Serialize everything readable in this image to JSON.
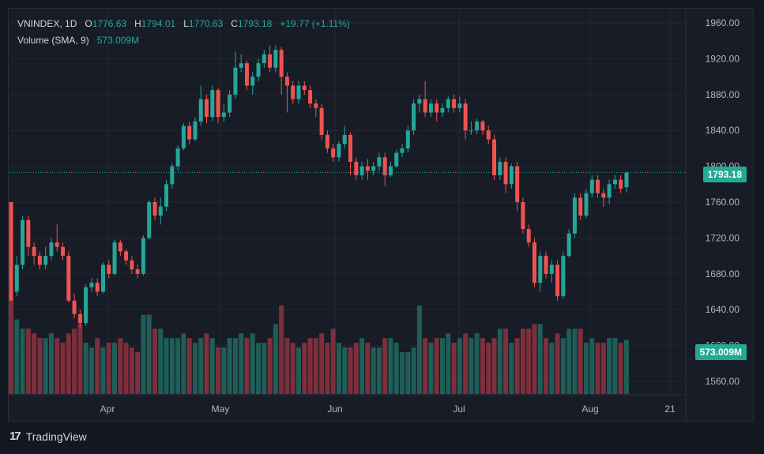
{
  "legend": {
    "symbol": "VNINDEX",
    "interval": "1D",
    "o_label": "O",
    "o_value": "1776.63",
    "h_label": "H",
    "h_value": "1794.01",
    "l_label": "L",
    "l_value": "1770.63",
    "c_label": "C",
    "c_value": "1793.18",
    "change": "+19.77 (+1.11%)",
    "volume_label": "Volume (SMA, 9)",
    "volume_value": "573.009M"
  },
  "price_axis": {
    "ticks": [
      "1960.00",
      "1920.00",
      "1880.00",
      "1840.00",
      "1800.00",
      "1760.00",
      "1720.00",
      "1680.00",
      "1640.00",
      "1600.00",
      "1560.00"
    ],
    "last_price": "1793.18",
    "volume_tag": "573.009M"
  },
  "time_axis": {
    "labels": [
      "Apr",
      "May",
      "Jun",
      "Jul",
      "Aug",
      "21"
    ]
  },
  "branding": {
    "logo_text": "TradingView"
  },
  "colors": {
    "up": "#26a69a",
    "down": "#ef5350",
    "up_volume": "#1e5e57",
    "down_volume": "#7d2f3c",
    "grid": "#242733",
    "background": "#181c27"
  },
  "chart_data": {
    "type": "candlestick",
    "title": "VNINDEX, 1D",
    "ylim": [
      1545,
      1975
    ],
    "x_axis_ticks": [
      "Apr",
      "May",
      "Jun",
      "Jul",
      "Aug",
      "21"
    ],
    "y_axis_ticks": [
      1560,
      1600,
      1640,
      1680,
      1720,
      1760,
      1800,
      1840,
      1880,
      1920,
      1960
    ],
    "last_close": 1793.18,
    "grid": true,
    "candles": [
      [
        1760,
        1650,
        1760,
        1650,
        1
      ],
      [
        1660,
        1690,
        1700,
        1655,
        0.8
      ],
      [
        1690,
        1740,
        1745,
        1685,
        0.7
      ],
      [
        1740,
        1710,
        1745,
        1700,
        0.7
      ],
      [
        1710,
        1700,
        1715,
        1690,
        0.65
      ],
      [
        1700,
        1690,
        1705,
        1685,
        0.6
      ],
      [
        1690,
        1700,
        1710,
        1685,
        0.6
      ],
      [
        1700,
        1715,
        1720,
        1695,
        0.65
      ],
      [
        1715,
        1710,
        1735,
        1705,
        0.6
      ],
      [
        1710,
        1700,
        1715,
        1695,
        0.55
      ],
      [
        1700,
        1650,
        1705,
        1648,
        0.65
      ],
      [
        1650,
        1635,
        1658,
        1630,
        0.7
      ],
      [
        1635,
        1625,
        1640,
        1620,
        0.75
      ],
      [
        1625,
        1665,
        1668,
        1622,
        0.55
      ],
      [
        1665,
        1670,
        1675,
        1660,
        0.5
      ],
      [
        1670,
        1660,
        1675,
        1655,
        0.6
      ],
      [
        1660,
        1690,
        1693,
        1658,
        0.5
      ],
      [
        1690,
        1680,
        1695,
        1675,
        0.55
      ],
      [
        1680,
        1715,
        1718,
        1678,
        0.55
      ],
      [
        1715,
        1705,
        1718,
        1700,
        0.6
      ],
      [
        1705,
        1695,
        1708,
        1690,
        0.55
      ],
      [
        1695,
        1685,
        1700,
        1680,
        0.5
      ],
      [
        1685,
        1680,
        1690,
        1675,
        0.45
      ],
      [
        1680,
        1720,
        1723,
        1678,
        0.85
      ],
      [
        1720,
        1760,
        1762,
        1718,
        0.85
      ],
      [
        1760,
        1745,
        1765,
        1740,
        0.7
      ],
      [
        1745,
        1755,
        1765,
        1735,
        0.7
      ],
      [
        1755,
        1780,
        1785,
        1750,
        0.6
      ],
      [
        1780,
        1800,
        1803,
        1775,
        0.6
      ],
      [
        1800,
        1820,
        1823,
        1795,
        0.6
      ],
      [
        1820,
        1845,
        1848,
        1818,
        0.65
      ],
      [
        1845,
        1830,
        1850,
        1825,
        0.6
      ],
      [
        1830,
        1850,
        1855,
        1828,
        0.55
      ],
      [
        1850,
        1875,
        1890,
        1845,
        0.6
      ],
      [
        1875,
        1855,
        1880,
        1848,
        0.65
      ],
      [
        1855,
        1885,
        1890,
        1850,
        0.6
      ],
      [
        1885,
        1855,
        1888,
        1848,
        0.5
      ],
      [
        1855,
        1860,
        1870,
        1850,
        0.5
      ],
      [
        1860,
        1880,
        1885,
        1855,
        0.6
      ],
      [
        1880,
        1910,
        1928,
        1875,
        0.6
      ],
      [
        1910,
        1915,
        1925,
        1905,
        0.65
      ],
      [
        1915,
        1890,
        1918,
        1885,
        0.6
      ],
      [
        1890,
        1900,
        1905,
        1880,
        0.65
      ],
      [
        1900,
        1915,
        1920,
        1895,
        0.55
      ],
      [
        1915,
        1925,
        1930,
        1910,
        0.55
      ],
      [
        1925,
        1910,
        1935,
        1905,
        0.6
      ],
      [
        1910,
        1930,
        1935,
        1905,
        0.75
      ],
      [
        1930,
        1900,
        1933,
        1880,
        0.95
      ],
      [
        1900,
        1890,
        1905,
        1860,
        0.6
      ],
      [
        1890,
        1875,
        1895,
        1870,
        0.55
      ],
      [
        1875,
        1890,
        1895,
        1870,
        0.5
      ],
      [
        1890,
        1885,
        1895,
        1880,
        0.55
      ],
      [
        1885,
        1870,
        1890,
        1865,
        0.6
      ],
      [
        1870,
        1865,
        1875,
        1855,
        0.6
      ],
      [
        1865,
        1835,
        1870,
        1830,
        0.65
      ],
      [
        1835,
        1820,
        1840,
        1815,
        0.55
      ],
      [
        1820,
        1810,
        1825,
        1805,
        0.7
      ],
      [
        1810,
        1825,
        1828,
        1805,
        0.55
      ],
      [
        1825,
        1835,
        1845,
        1820,
        0.5
      ],
      [
        1835,
        1805,
        1838,
        1790,
        0.5
      ],
      [
        1805,
        1790,
        1810,
        1785,
        0.55
      ],
      [
        1790,
        1800,
        1805,
        1785,
        0.6
      ],
      [
        1800,
        1795,
        1808,
        1785,
        0.55
      ],
      [
        1795,
        1800,
        1805,
        1790,
        0.5
      ],
      [
        1800,
        1810,
        1815,
        1795,
        0.5
      ],
      [
        1810,
        1790,
        1815,
        1778,
        0.6
      ],
      [
        1790,
        1800,
        1805,
        1788,
        0.6
      ],
      [
        1800,
        1815,
        1818,
        1798,
        0.55
      ],
      [
        1815,
        1820,
        1825,
        1810,
        0.45
      ],
      [
        1820,
        1840,
        1845,
        1815,
        0.45
      ],
      [
        1840,
        1870,
        1875,
        1835,
        0.5
      ],
      [
        1870,
        1875,
        1880,
        1860,
        0.95
      ],
      [
        1875,
        1860,
        1895,
        1855,
        0.6
      ],
      [
        1860,
        1870,
        1875,
        1855,
        0.55
      ],
      [
        1870,
        1860,
        1875,
        1850,
        0.6
      ],
      [
        1860,
        1865,
        1870,
        1855,
        0.6
      ],
      [
        1865,
        1875,
        1878,
        1860,
        0.65
      ],
      [
        1875,
        1865,
        1880,
        1860,
        0.55
      ],
      [
        1865,
        1870,
        1878,
        1860,
        0.6
      ],
      [
        1870,
        1840,
        1875,
        1830,
        0.65
      ],
      [
        1840,
        1840,
        1850,
        1835,
        0.6
      ],
      [
        1840,
        1850,
        1853,
        1836,
        0.65
      ],
      [
        1850,
        1840,
        1852,
        1835,
        0.6
      ],
      [
        1840,
        1830,
        1845,
        1825,
        0.55
      ],
      [
        1830,
        1790,
        1835,
        1785,
        0.6
      ],
      [
        1790,
        1805,
        1810,
        1785,
        0.7
      ],
      [
        1805,
        1780,
        1810,
        1770,
        0.7
      ],
      [
        1780,
        1800,
        1803,
        1775,
        0.55
      ],
      [
        1800,
        1760,
        1805,
        1750,
        0.6
      ],
      [
        1760,
        1730,
        1765,
        1725,
        0.7
      ],
      [
        1730,
        1715,
        1735,
        1710,
        0.7
      ],
      [
        1715,
        1670,
        1720,
        1665,
        0.75
      ],
      [
        1670,
        1700,
        1705,
        1660,
        0.75
      ],
      [
        1700,
        1680,
        1705,
        1675,
        0.6
      ],
      [
        1680,
        1690,
        1695,
        1670,
        0.55
      ],
      [
        1690,
        1655,
        1695,
        1650,
        0.65
      ],
      [
        1655,
        1700,
        1705,
        1652,
        0.6
      ],
      [
        1700,
        1725,
        1730,
        1698,
        0.7
      ],
      [
        1725,
        1765,
        1770,
        1720,
        0.7
      ],
      [
        1765,
        1745,
        1770,
        1740,
        0.7
      ],
      [
        1745,
        1770,
        1775,
        1742,
        0.55
      ],
      [
        1770,
        1785,
        1790,
        1765,
        0.6
      ],
      [
        1785,
        1770,
        1790,
        1765,
        0.55
      ],
      [
        1770,
        1765,
        1775,
        1755,
        0.55
      ],
      [
        1765,
        1780,
        1785,
        1758,
        0.6
      ],
      [
        1780,
        1785,
        1790,
        1775,
        0.6
      ],
      [
        1785,
        1775,
        1790,
        1770,
        0.55
      ],
      [
        1776.63,
        1793.18,
        1794.01,
        1770.63,
        0.58
      ]
    ]
  }
}
